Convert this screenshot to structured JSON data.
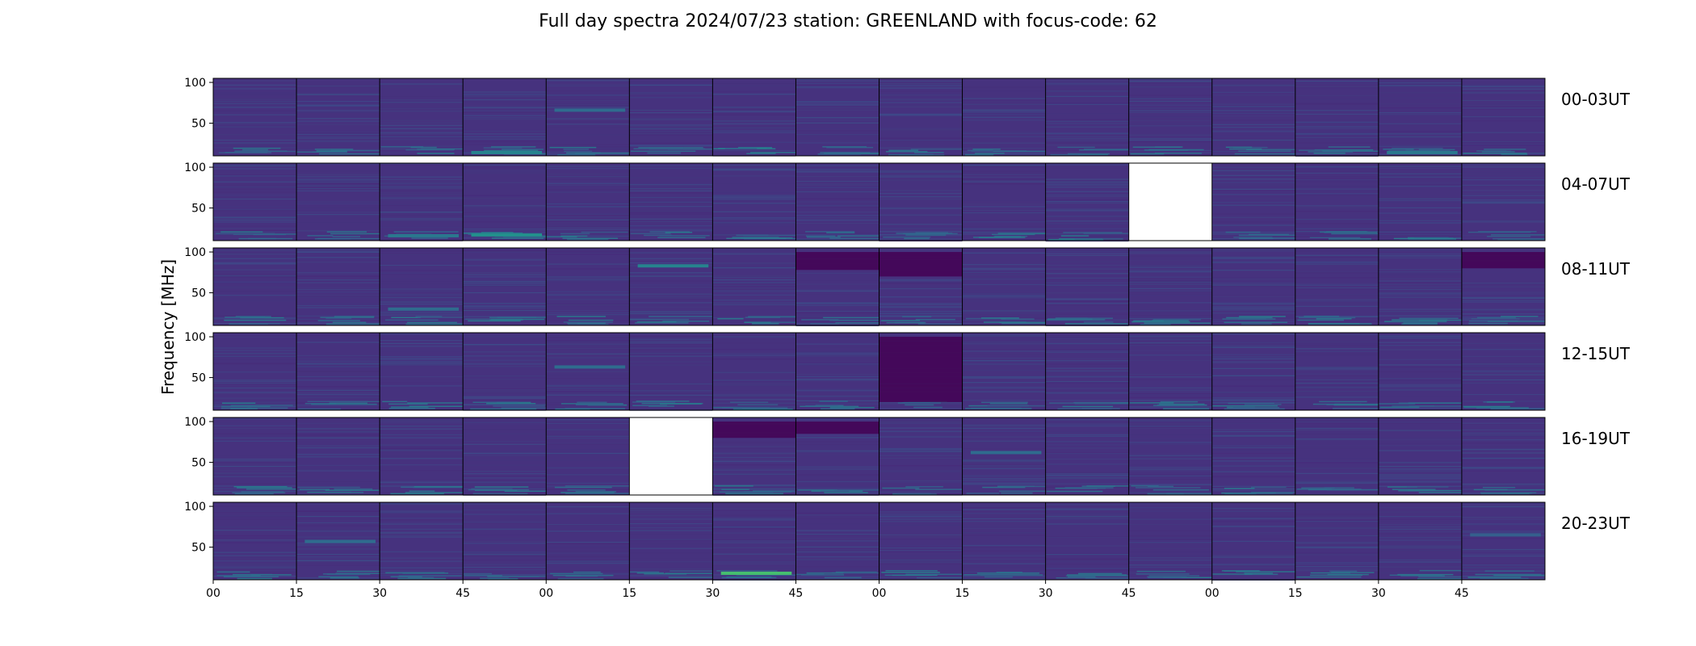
{
  "chart_data": {
    "type": "heatmap",
    "title": "Full day spectra 2024/07/23 station: GREENLAND with focus-code: 62",
    "ylabel": "Frequency [MHz]",
    "xlabel": "",
    "ylim": [
      10,
      105
    ],
    "y_ticks": [
      "100",
      "50"
    ],
    "y_tick_values": [
      100,
      50
    ],
    "x_ticks": [
      "00",
      "15",
      "30",
      "45",
      "00",
      "15",
      "30",
      "45",
      "00",
      "15",
      "30",
      "45",
      "00",
      "15",
      "30",
      "45"
    ],
    "rows": [
      "00-03UT",
      "04-07UT",
      "08-11UT",
      "12-15UT",
      "16-19UT",
      "20-23UT"
    ],
    "panels_per_row": 16,
    "colormap": "viridis",
    "missing_panels": [
      {
        "row": 1,
        "col": 11
      },
      {
        "row": 4,
        "col": 5
      }
    ],
    "bright_bands": [
      {
        "row": 0,
        "col": 4,
        "freq": 66,
        "level": 0.35
      },
      {
        "row": 0,
        "col": 3,
        "freq": 14,
        "level": 0.45
      },
      {
        "row": 0,
        "col": 14,
        "freq": 14,
        "level": 0.4
      },
      {
        "row": 1,
        "col": 2,
        "freq": 16,
        "level": 0.4
      },
      {
        "row": 1,
        "col": 3,
        "freq": 17,
        "level": 0.5
      },
      {
        "row": 2,
        "col": 2,
        "freq": 30,
        "level": 0.35
      },
      {
        "row": 2,
        "col": 5,
        "freq": 83,
        "level": 0.45
      },
      {
        "row": 3,
        "col": 4,
        "freq": 63,
        "level": 0.35
      },
      {
        "row": 4,
        "col": 9,
        "freq": 62,
        "level": 0.35
      },
      {
        "row": 5,
        "col": 1,
        "freq": 57,
        "level": 0.35
      },
      {
        "row": 5,
        "col": 6,
        "freq": 18,
        "level": 0.7
      },
      {
        "row": 5,
        "col": 15,
        "freq": 65,
        "level": 0.3
      }
    ],
    "dark_blocks": [
      {
        "row": 2,
        "col": 7,
        "f0": 78,
        "f1": 100
      },
      {
        "row": 2,
        "col": 8,
        "f0": 70,
        "f1": 100
      },
      {
        "row": 2,
        "col": 15,
        "f0": 80,
        "f1": 100
      },
      {
        "row": 3,
        "col": 8,
        "f0": 20,
        "f1": 100
      },
      {
        "row": 4,
        "col": 6,
        "f0": 80,
        "f1": 100
      },
      {
        "row": 4,
        "col": 7,
        "f0": 85,
        "f1": 100
      }
    ]
  },
  "colors": {
    "background": "#440154",
    "base": "#46327e",
    "mid": "#3b528b",
    "teal": "#21918c",
    "green": "#5ec962"
  }
}
